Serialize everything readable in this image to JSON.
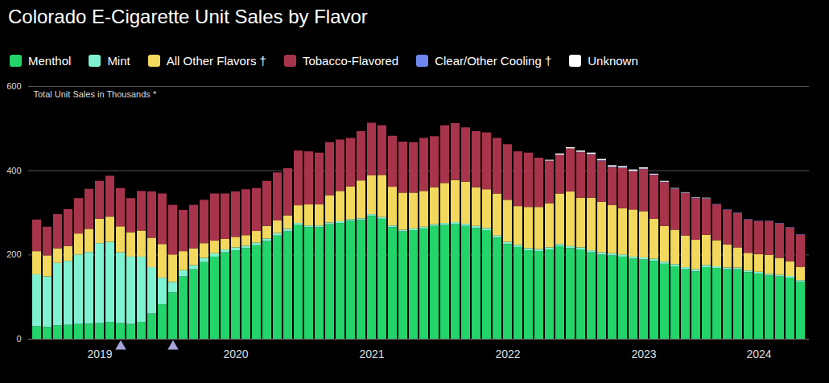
{
  "chart_data": {
    "type": "bar",
    "title": "Colorado E-Cigarette Unit Sales by Flavor",
    "y_label": "Total Unit Sales in Thousands *",
    "stacked": true,
    "grid": true,
    "ylim": [
      0,
      600
    ],
    "yticks": [
      0,
      200,
      400,
      600
    ],
    "categories": [
      null,
      null,
      null,
      null,
      null,
      null,
      "2019",
      null,
      null,
      null,
      null,
      null,
      null,
      null,
      null,
      null,
      null,
      null,
      null,
      "2020",
      null,
      null,
      null,
      null,
      null,
      null,
      null,
      null,
      null,
      null,
      null,
      null,
      "2021",
      null,
      null,
      null,
      null,
      null,
      null,
      null,
      null,
      null,
      null,
      null,
      null,
      "2022",
      null,
      null,
      null,
      null,
      null,
      null,
      null,
      null,
      null,
      null,
      null,
      null,
      "2023",
      null,
      null,
      null,
      null,
      null,
      null,
      null,
      null,
      null,
      null,
      "2024",
      null,
      null,
      null,
      null
    ],
    "event_markers": [
      8,
      13
    ],
    "series": [
      {
        "name": "Menthol",
        "color": "#22d46a",
        "values": [
          30,
          28,
          32,
          33,
          35,
          36,
          37,
          40,
          37,
          35,
          40,
          60,
          82,
          110,
          148,
          165,
          182,
          195,
          205,
          210,
          215,
          222,
          232,
          245,
          255,
          270,
          265,
          265,
          272,
          275,
          280,
          282,
          292,
          285,
          265,
          255,
          258,
          262,
          268,
          270,
          272,
          268,
          263,
          258,
          240,
          225,
          218,
          210,
          208,
          212,
          220,
          215,
          212,
          205,
          200,
          198,
          195,
          190,
          188,
          185,
          178,
          172,
          165,
          160,
          170,
          168,
          165,
          165,
          158,
          155,
          150,
          148,
          145,
          135
        ]
      },
      {
        "name": "Mint",
        "color": "#7ff2d2",
        "values": [
          123,
          120,
          148,
          152,
          165,
          170,
          190,
          190,
          168,
          160,
          155,
          110,
          63,
          25,
          15,
          10,
          10,
          8,
          7,
          7,
          6,
          6,
          6,
          6,
          6,
          5,
          4,
          4,
          4,
          4,
          4,
          4,
          4,
          4,
          4,
          4,
          4,
          4,
          4,
          5,
          5,
          5,
          5,
          5,
          5,
          5,
          5,
          5,
          5,
          5,
          5,
          5,
          5,
          5,
          5,
          5,
          5,
          5,
          5,
          5,
          5,
          5,
          5,
          5,
          5,
          4,
          4,
          4,
          4,
          4,
          4,
          4,
          4,
          4
        ]
      },
      {
        "name": "All Other Flavors †",
        "color": "#f2d85c",
        "values": [
          55,
          50,
          35,
          35,
          50,
          55,
          58,
          60,
          62,
          58,
          62,
          70,
          80,
          65,
          45,
          40,
          35,
          30,
          25,
          25,
          25,
          28,
          30,
          30,
          32,
          42,
          50,
          50,
          65,
          72,
          78,
          90,
          92,
          100,
          92,
          88,
          85,
          85,
          88,
          95,
          100,
          100,
          92,
          92,
          100,
          100,
          92,
          98,
          100,
          105,
          120,
          130,
          118,
          125,
          120,
          115,
          110,
          112,
          110,
          95,
          85,
          82,
          75,
          70,
          72,
          62,
          55,
          48,
          42,
          42,
          45,
          40,
          35,
          32
        ]
      },
      {
        "name": "Tobacco-Flavored",
        "color": "#a8344b",
        "values": [
          75,
          68,
          81,
          88,
          84,
          95,
          90,
          97,
          91,
          81,
          94,
          110,
          120,
          118,
          98,
          103,
          103,
          112,
          108,
          108,
          109,
          102,
          107,
          114,
          112,
          130,
          126,
          123,
          126,
          122,
          115,
          117,
          125,
          118,
          121,
          121,
          120,
          126,
          121,
          137,
          135,
          129,
          133,
          135,
          132,
          132,
          130,
          129,
          117,
          101,
          92,
          102,
          108,
          103,
          98,
          90,
          96,
          91,
          100,
          104,
          104,
          97,
          101,
          99,
          86,
          85,
          82,
          82,
          79,
          78,
          80,
          82,
          80,
          76
        ]
      },
      {
        "name": "Clear/Other Cooling †",
        "color": "#6f86f0",
        "values": [
          0,
          0,
          0,
          0,
          0,
          0,
          0,
          0,
          0,
          0,
          0,
          0,
          0,
          0,
          0,
          0,
          0,
          0,
          0,
          0,
          0,
          0,
          0,
          0,
          0,
          0,
          0,
          0,
          0,
          0,
          0,
          0,
          0,
          0,
          0,
          0,
          0,
          0,
          0,
          0,
          0,
          0,
          0,
          0,
          0,
          0,
          0,
          0,
          0,
          0,
          0,
          0,
          1,
          1,
          1,
          1,
          1,
          1,
          1,
          1,
          1,
          1,
          1,
          1,
          1,
          1,
          1,
          1,
          1,
          1,
          1,
          1,
          1,
          1
        ]
      },
      {
        "name": "Unknown",
        "color": "#ffffff",
        "values": [
          0,
          0,
          0,
          0,
          0,
          0,
          0,
          0,
          0,
          0,
          0,
          0,
          0,
          0,
          0,
          0,
          0,
          0,
          0,
          0,
          0,
          0,
          0,
          0,
          0,
          0,
          0,
          0,
          0,
          0,
          0,
          0,
          0,
          0,
          0,
          0,
          0,
          0,
          0,
          0,
          0,
          0,
          0,
          0,
          0,
          0,
          0,
          0,
          0,
          2,
          3,
          3,
          3,
          3,
          3,
          3,
          3,
          3,
          3,
          2,
          2,
          1,
          1,
          1,
          1,
          0,
          0,
          0,
          0,
          0,
          0,
          0,
          0,
          0
        ]
      }
    ]
  }
}
